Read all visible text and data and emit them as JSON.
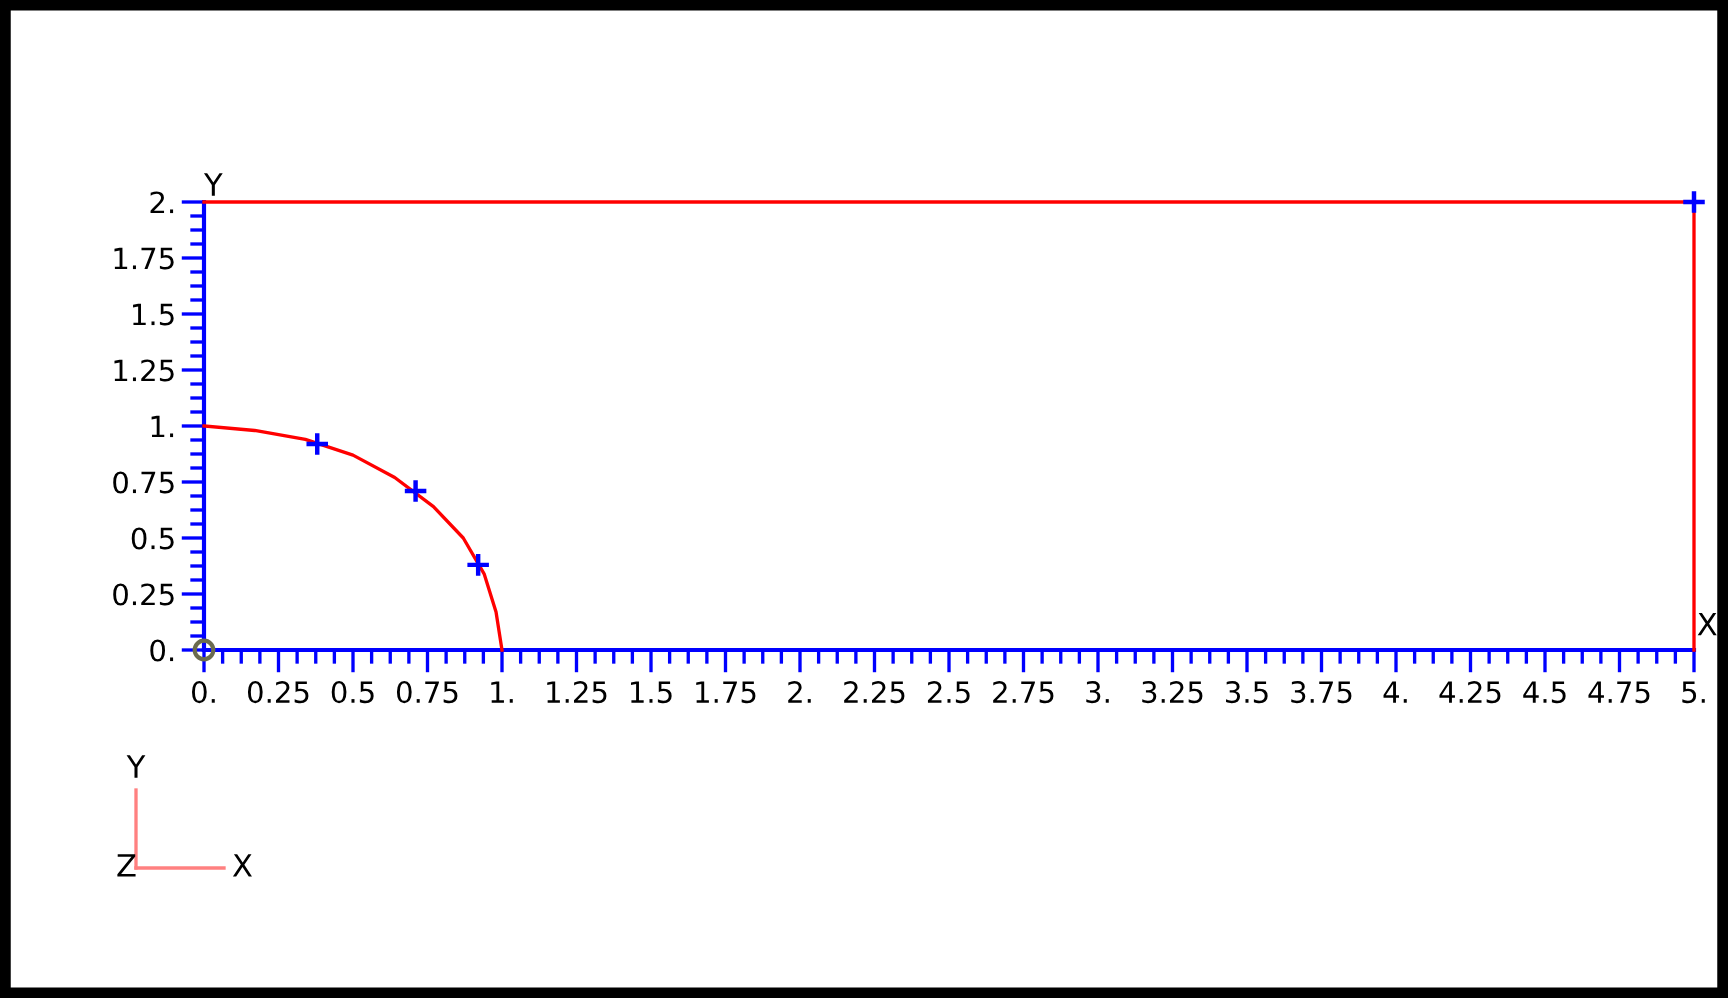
{
  "chart_data": {
    "type": "line",
    "xlabel": "X",
    "ylabel": "Y",
    "xlim": [
      0,
      5
    ],
    "ylim": [
      0,
      2
    ],
    "xticks": [
      {
        "value": 0,
        "label": "0."
      },
      0.25,
      0.5,
      0.75,
      {
        "value": 1,
        "label": "1."
      },
      1.25,
      1.5,
      1.75,
      {
        "value": 2,
        "label": "2."
      },
      2.25,
      2.5,
      2.75,
      {
        "value": 3,
        "label": "3."
      },
      3.25,
      3.5,
      3.75,
      {
        "value": 4,
        "label": "4."
      },
      4.25,
      4.5,
      4.75,
      {
        "value": 5,
        "label": "5."
      }
    ],
    "yticks": [
      {
        "value": 0,
        "label": "0."
      },
      0.25,
      0.5,
      0.75,
      {
        "value": 1,
        "label": "1."
      },
      1.25,
      1.5,
      1.75,
      {
        "value": 2,
        "label": "2."
      }
    ],
    "grid": false,
    "legend": false,
    "series": [
      {
        "type": "line",
        "color": "#ff0000",
        "x": [
          0,
          0.17,
          0.34,
          0.5,
          0.64,
          0.77,
          0.87,
          0.94,
          0.98,
          1
        ],
        "values": [
          1,
          0.98,
          0.94,
          0.87,
          0.77,
          0.64,
          0.5,
          0.34,
          0.17,
          0
        ],
        "marker": "none"
      },
      {
        "type": "scatter",
        "color": "#0000ff",
        "x": [
          0.38,
          0.71,
          0.92,
          5
        ],
        "values": [
          0.92,
          0.71,
          0.38,
          2
        ],
        "marker": "cross"
      },
      {
        "type": "scatter",
        "color": "#6b6b4f",
        "x": [
          0
        ],
        "values": [
          0
        ],
        "marker": "circle"
      }
    ],
    "ref_lines": [
      {
        "axis": "y",
        "value": 2,
        "color": "#ff0000"
      },
      {
        "axis": "x",
        "value": 5,
        "color": "#ff0000"
      }
    ],
    "annotations": [
      "Y",
      "Z",
      "X"
    ]
  }
}
